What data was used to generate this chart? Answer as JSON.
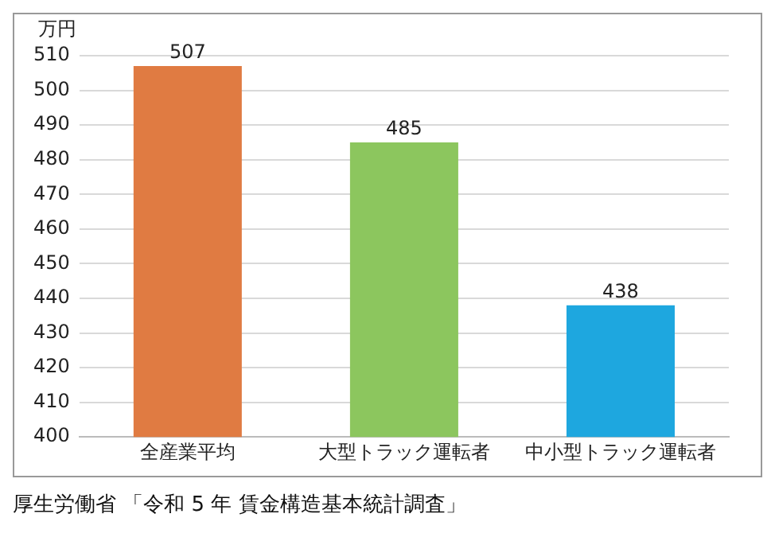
{
  "chart_data": {
    "type": "bar",
    "ylabel": "万円",
    "categories": [
      "全産業平均",
      "大型トラック運転者",
      "中小型トラック運転者"
    ],
    "values": [
      507,
      485,
      438
    ],
    "colors": [
      "#e07b42",
      "#8cc65e",
      "#1ea7df"
    ],
    "ylim": [
      400,
      510
    ],
    "yticks": [
      400,
      410,
      420,
      430,
      440,
      450,
      460,
      470,
      480,
      490,
      500,
      510
    ],
    "grid": "y",
    "data_labels": true,
    "legend": false,
    "annotations": [
      "厚生労働省 「令和 5 年 賃金構造基本統計調査」"
    ]
  }
}
